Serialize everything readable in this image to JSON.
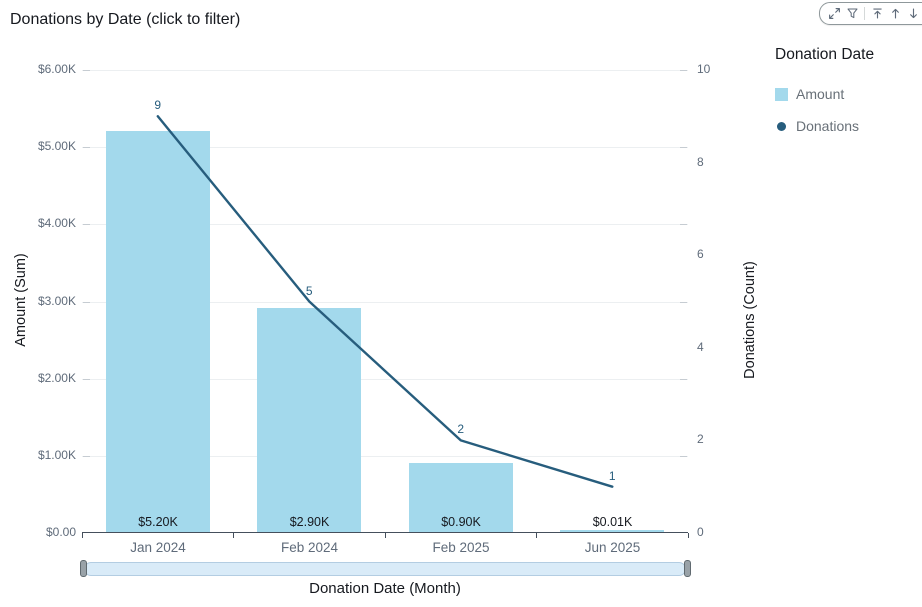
{
  "header": {
    "title": "Donations by Date (click to filter)"
  },
  "toolbar": {
    "icon_names": [
      "expand",
      "filter",
      "move-to-top",
      "move-up",
      "move-down",
      "menu"
    ]
  },
  "legend": {
    "title": "Donation Date",
    "items": [
      {
        "label": "Amount",
        "swatch": "square",
        "color": "#a3d9ec"
      },
      {
        "label": "Donations",
        "swatch": "circle",
        "color": "#275d7d"
      }
    ]
  },
  "chart_data": {
    "type": "combo-bar-line",
    "title": "Donations by Date (click to filter)",
    "categories": [
      "Jan 2024",
      "Feb 2024",
      "Feb 2025",
      "Jun 2025"
    ],
    "series": [
      {
        "name": "Amount",
        "type": "bar",
        "axis": "left",
        "values": [
          5200,
          2900,
          900,
          10
        ],
        "labels": [
          "$5.20K",
          "$2.90K",
          "$0.90K",
          "$0.01K"
        ],
        "color": "#a3d9ec"
      },
      {
        "name": "Donations",
        "type": "line",
        "axis": "right",
        "values": [
          9,
          5,
          2,
          1
        ],
        "labels": [
          "9",
          "5",
          "2",
          "1"
        ],
        "color": "#275d7d"
      }
    ],
    "left_axis": {
      "title": "Amount (Sum)",
      "min": 0,
      "max": 6000,
      "tick_labels": [
        "$6.00K",
        "$5.00K",
        "$4.00K",
        "$3.00K",
        "$2.00K",
        "$1.00K",
        "$0.00"
      ]
    },
    "right_axis": {
      "title": "Donations (Count)",
      "min": 0,
      "max": 10,
      "tick_labels": [
        "10",
        "8",
        "6",
        "4",
        "2",
        "0"
      ]
    },
    "x_axis": {
      "title": "Donation Date (Month)"
    },
    "grid": true,
    "legend_position": "right"
  }
}
